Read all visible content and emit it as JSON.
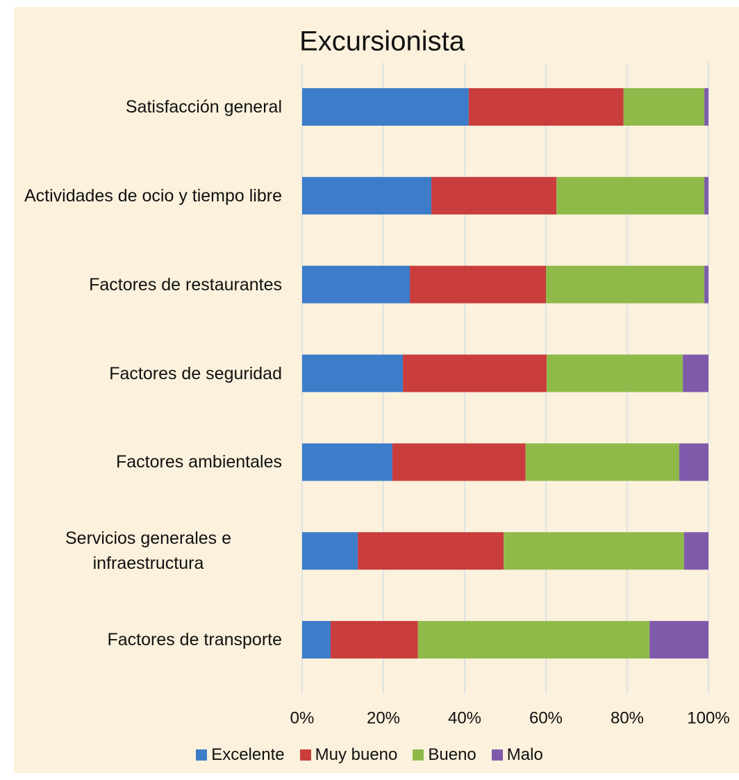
{
  "chart_data": {
    "type": "stacked_bar_horizontal",
    "title": "Excursionista",
    "categories": [
      "Satisfacción general",
      "Actividades de ocio y tiempo libre",
      "Factores de restaurantes",
      "Factores de seguridad",
      "Factores ambientales",
      "Servicios generales e infraestructura",
      "Factores de transporte"
    ],
    "series": [
      {
        "name": "Excelente",
        "color": "#3d7cc9",
        "values": [
          41.0,
          31.8,
          26.5,
          24.8,
          22.2,
          13.7,
          7.0
        ]
      },
      {
        "name": "Muy bueno",
        "color": "#c93d3d",
        "values": [
          38.1,
          30.8,
          33.5,
          35.4,
          32.8,
          35.9,
          21.5
        ]
      },
      {
        "name": "Bueno",
        "color": "#8fba4a",
        "values": [
          19.9,
          36.4,
          39.0,
          33.5,
          37.8,
          44.4,
          57.0
        ]
      },
      {
        "name": "Malo",
        "color": "#7f5aab",
        "values": [
          1.0,
          1.0,
          1.0,
          6.3,
          7.2,
          6.0,
          14.5
        ]
      }
    ],
    "xlim": [
      0,
      100
    ],
    "xticks": [
      {
        "value": 0,
        "label": "0%"
      },
      {
        "value": 20,
        "label": "20%"
      },
      {
        "value": 40,
        "label": "40%"
      },
      {
        "value": 60,
        "label": "60%"
      },
      {
        "value": 80,
        "label": "80%"
      },
      {
        "value": 100,
        "label": "100%"
      }
    ],
    "grid": true,
    "legend": "bottom"
  }
}
